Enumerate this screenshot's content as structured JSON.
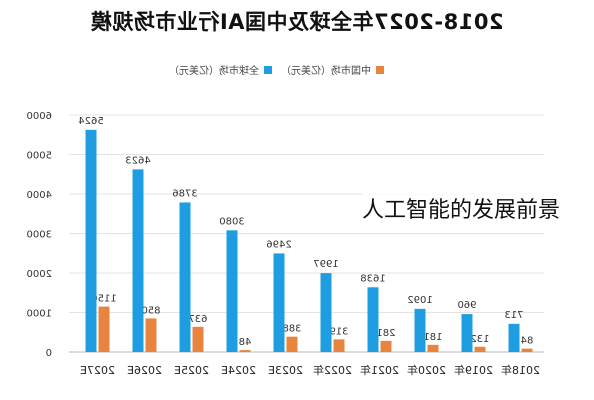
{
  "chart_data": {
    "type": "bar",
    "title": "2018-2027年全球及中国AI行业市场规模",
    "categories": [
      "2018年",
      "2019年",
      "2020年",
      "2021年",
      "2022年",
      "2023E",
      "2024E",
      "2025E",
      "2026E",
      "2027E"
    ],
    "series": [
      {
        "name": "全球市场（亿美元）",
        "color": "#1e9de0",
        "values": [
          713,
          960,
          1092,
          1638,
          1997,
          2496,
          3080,
          3786,
          4623,
          5624
        ]
      },
      {
        "name": "中国市场（亿美元）",
        "color": "#e8843e",
        "values": [
          84,
          132,
          181,
          281,
          319,
          388,
          48,
          637,
          850,
          1150
        ]
      }
    ],
    "ylim": [
      0,
      6000
    ],
    "yticks": [
      0,
      1000,
      2000,
      3000,
      4000,
      5000,
      6000
    ],
    "grid": true,
    "legend_position": "top-center",
    "mirrored": true
  },
  "overlay_text": "人工智能的发展前景"
}
